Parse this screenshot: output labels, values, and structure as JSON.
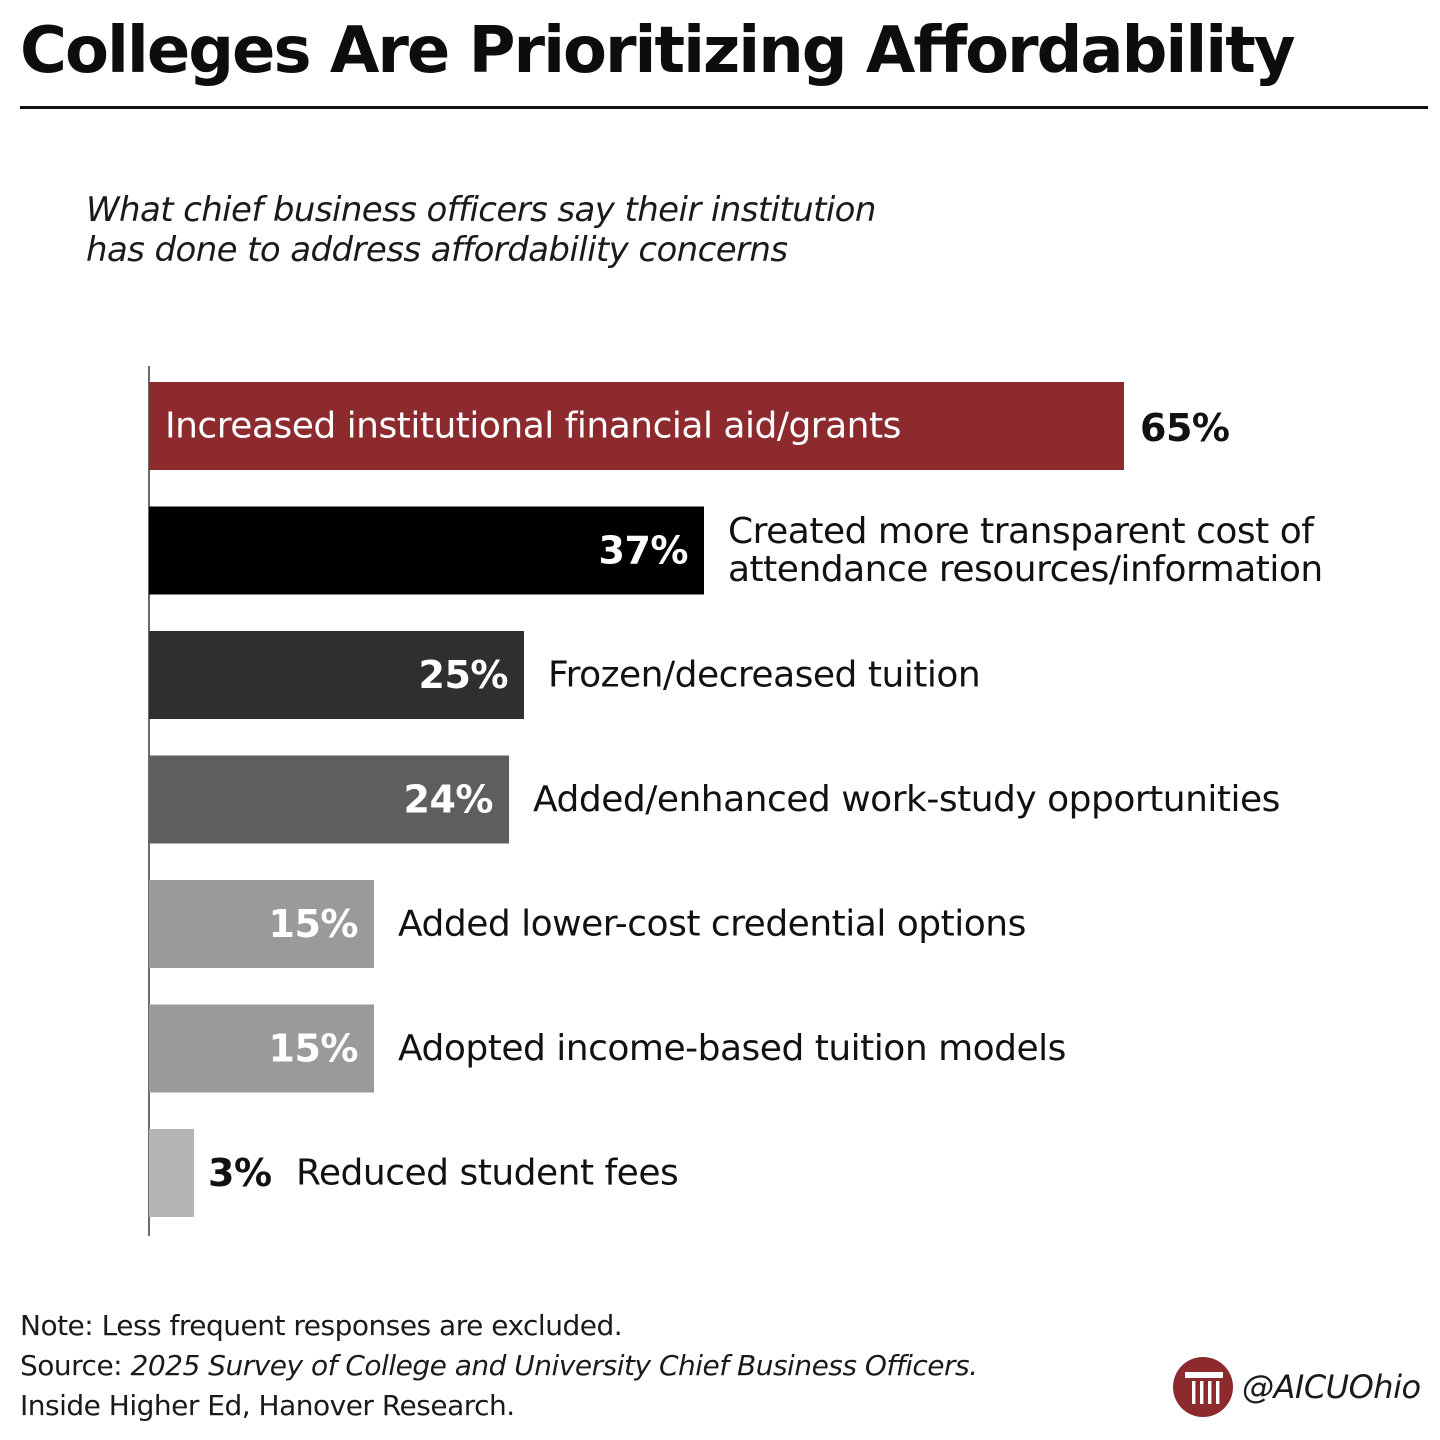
{
  "title": "Colleges Are Prioritizing Affordability",
  "subtitle_lines": [
    "What chief business officers say their institution",
    "has done to address affordability concerns"
  ],
  "chart_data": {
    "type": "bar",
    "orientation": "horizontal",
    "unit": "%",
    "xlim": [
      0,
      100
    ],
    "grid": false,
    "bars": [
      {
        "label": "Increased institutional financial aid/grants",
        "value": 65,
        "value_text": "65%",
        "color": "#8c2a2e"
      },
      {
        "label": "Created more transparent cost of attendance resources/information",
        "label_lines": [
          "Created more transparent cost of",
          "attendance resources/information"
        ],
        "value": 37,
        "value_text": "37%",
        "color": "#000000"
      },
      {
        "label": "Frozen/decreased tuition",
        "value": 25,
        "value_text": "25%",
        "color": "#2f2f2f"
      },
      {
        "label": "Added/enhanced work-study opportunities",
        "value": 24,
        "value_text": "24%",
        "color": "#5e5e5e"
      },
      {
        "label": "Added lower-cost credential options",
        "value": 15,
        "value_text": "15%",
        "color": "#9a9a9a"
      },
      {
        "label": "Adopted income-based tuition models",
        "value": 15,
        "value_text": "15%",
        "color": "#9a9a9a"
      },
      {
        "label": "Reduced student fees",
        "value": 3,
        "value_text": "3%",
        "color": "#b5b5b5"
      }
    ]
  },
  "footnote": {
    "note": "Note: Less frequent responses are excluded.",
    "source_prefix": "Source: ",
    "source_title": "2025 Survey of College and University Chief Business Officers.",
    "source_orgs": "Inside Higher Ed, Hanover Research."
  },
  "brand": {
    "handle": "@AICUOhio",
    "logo_icon": "column-logo-icon",
    "logo_color": "#8c2a2e"
  }
}
